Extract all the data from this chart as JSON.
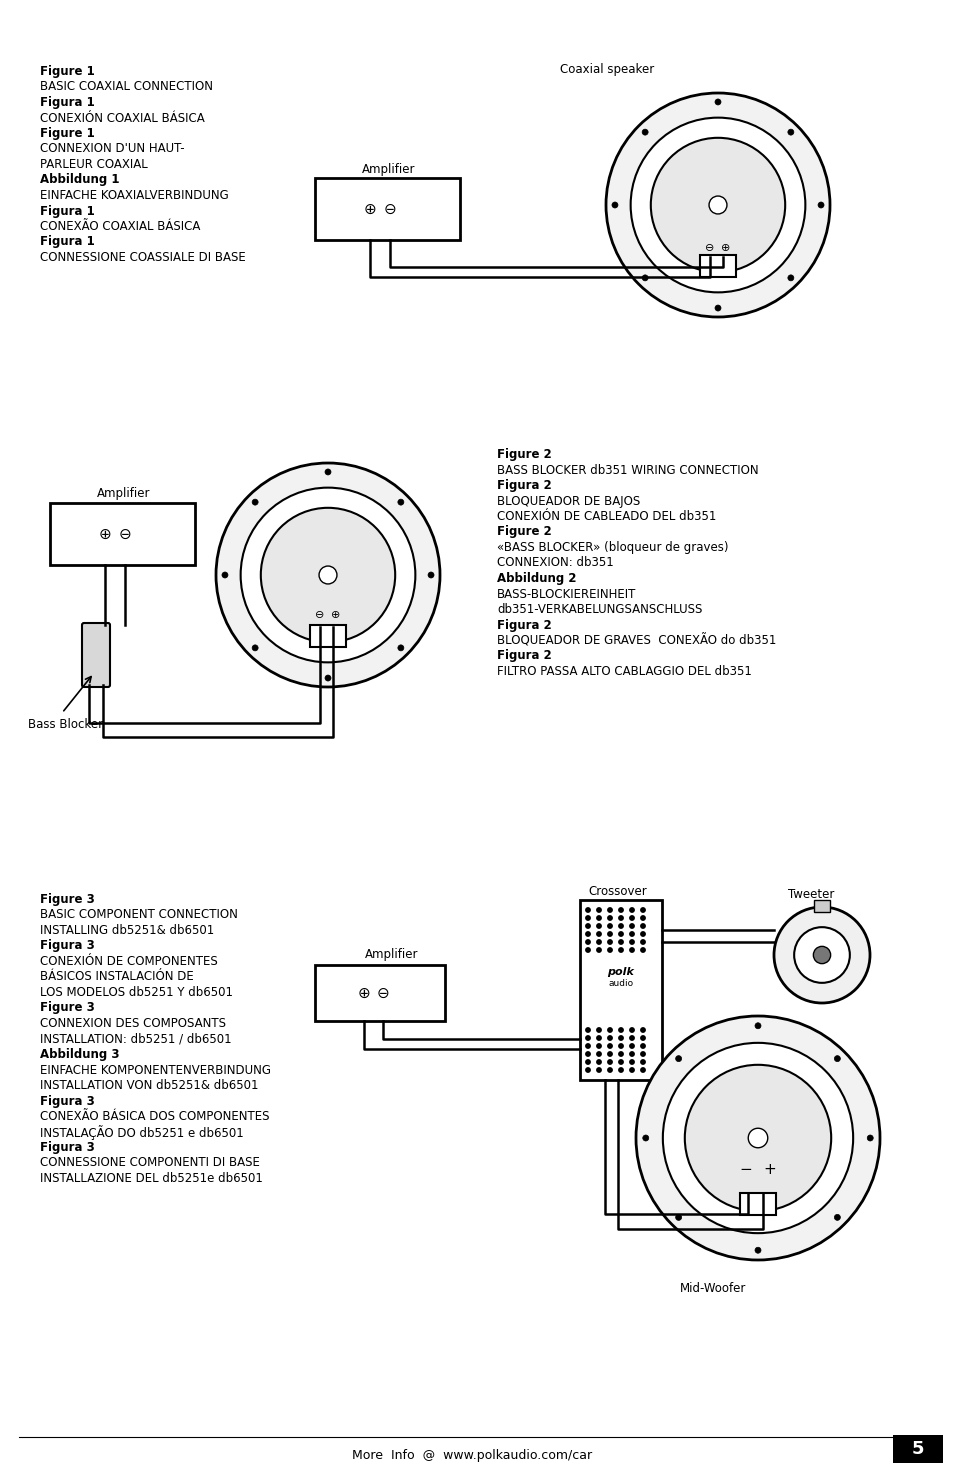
{
  "bg_color": "#ffffff",
  "text_color": "#000000",
  "page_number": "5",
  "footer_text": "More  Info  @  www.polkaudio.com/car",
  "fig1_label_coaxial": "Coaxial speaker",
  "fig1_label_amplifier": "Amplifier",
  "fig2_label_amplifier": "Amplifier",
  "fig2_label_bassblocker": "Bass Blocker",
  "fig3_label_crossover": "Crossover",
  "fig3_label_tweeter": "Tweeter",
  "fig3_label_amplifier": "Amplifier",
  "fig3_label_midwoofer": "Mid-Woofer"
}
